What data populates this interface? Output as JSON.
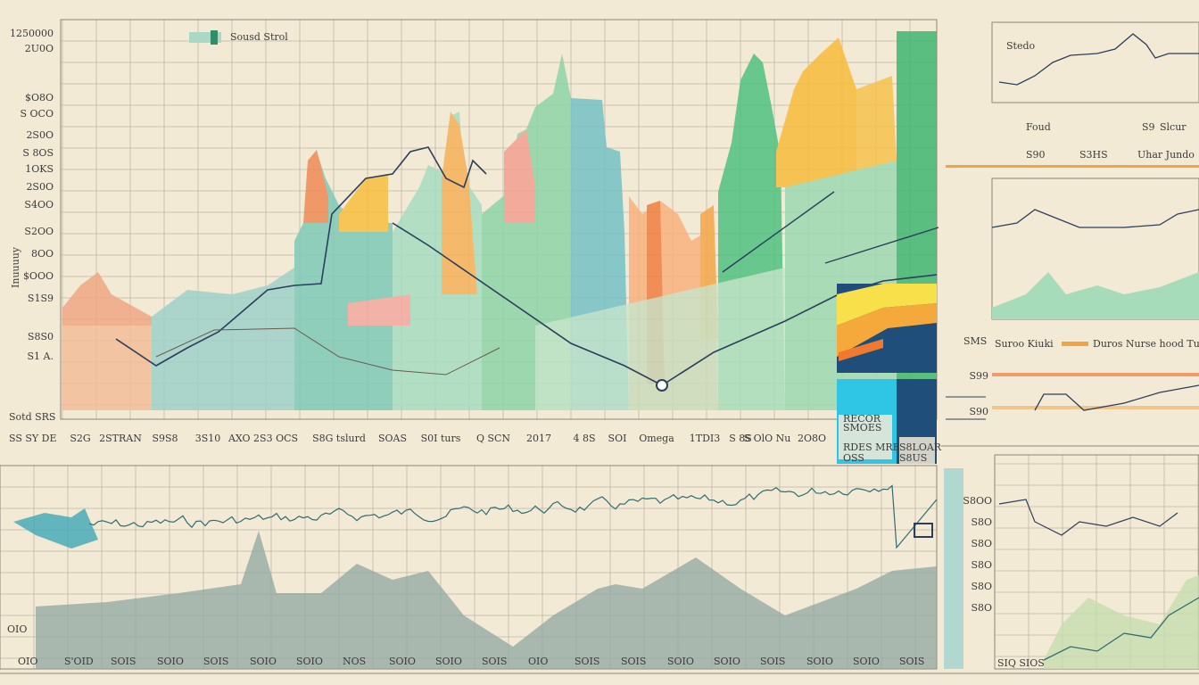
{
  "main": {
    "y_title": "Inuuuuy",
    "legend": "Sousd Strol",
    "y_labels": [
      "1250000",
      "2U0O",
      "$O8O",
      "S OCO",
      "2S0O",
      "S 8OS",
      "1OKS",
      "2S0O",
      "S4OO",
      "S2OO",
      "8OO",
      "$OOO",
      "S1S9",
      "S8S0",
      "S1 A."
    ],
    "x_labels": [
      "S2G",
      "2STRAN",
      "S9S8",
      "3S10",
      "AXO 2S3 OCS",
      "S8G tslurd",
      "SOAS",
      "S0I turs",
      "Q SCN",
      "2017",
      "4 8S",
      "SOI",
      "Omega",
      "1TDI3",
      "S 8S",
      "S OlO Nu",
      "2O8O"
    ],
    "corner_labels": [
      "Sotd SRS",
      "SS SY DE"
    ]
  },
  "box": {
    "lines": [
      "RECOR",
      "SMOES",
      "RDES MRE",
      "S8LOAR",
      "OSS",
      "S8US"
    ]
  },
  "right": {
    "panel1_title": "Stedo",
    "row1": [
      "Foud",
      "S9",
      "Slcur"
    ],
    "row2": [
      "S90",
      "S3HS",
      "Uhar Jundo"
    ],
    "panel3_label": "SMS",
    "legend": [
      "Suroo Kiuki",
      "Duros Nurse hood Tursed"
    ],
    "ticks": [
      "S99",
      "S90"
    ]
  },
  "bottom": {
    "y_label": "OIO",
    "x_labels": [
      "OIO",
      "S'OID",
      "SOIS",
      "SOIO",
      "SOIS",
      "SOIO",
      "SOIO",
      "NOS",
      "SOIO",
      "SOIO",
      "SOIS",
      "OIO",
      "SOIS",
      "SOIS",
      "SOIO",
      "SOIO",
      "SOIS",
      "SOIO",
      "SOIO",
      "SOIS"
    ],
    "right_ticks": [
      "S8OO",
      "S8O",
      "S8O",
      "S8O",
      "S8O",
      "S8O"
    ],
    "right_label": "SIQ SIOS"
  }
}
